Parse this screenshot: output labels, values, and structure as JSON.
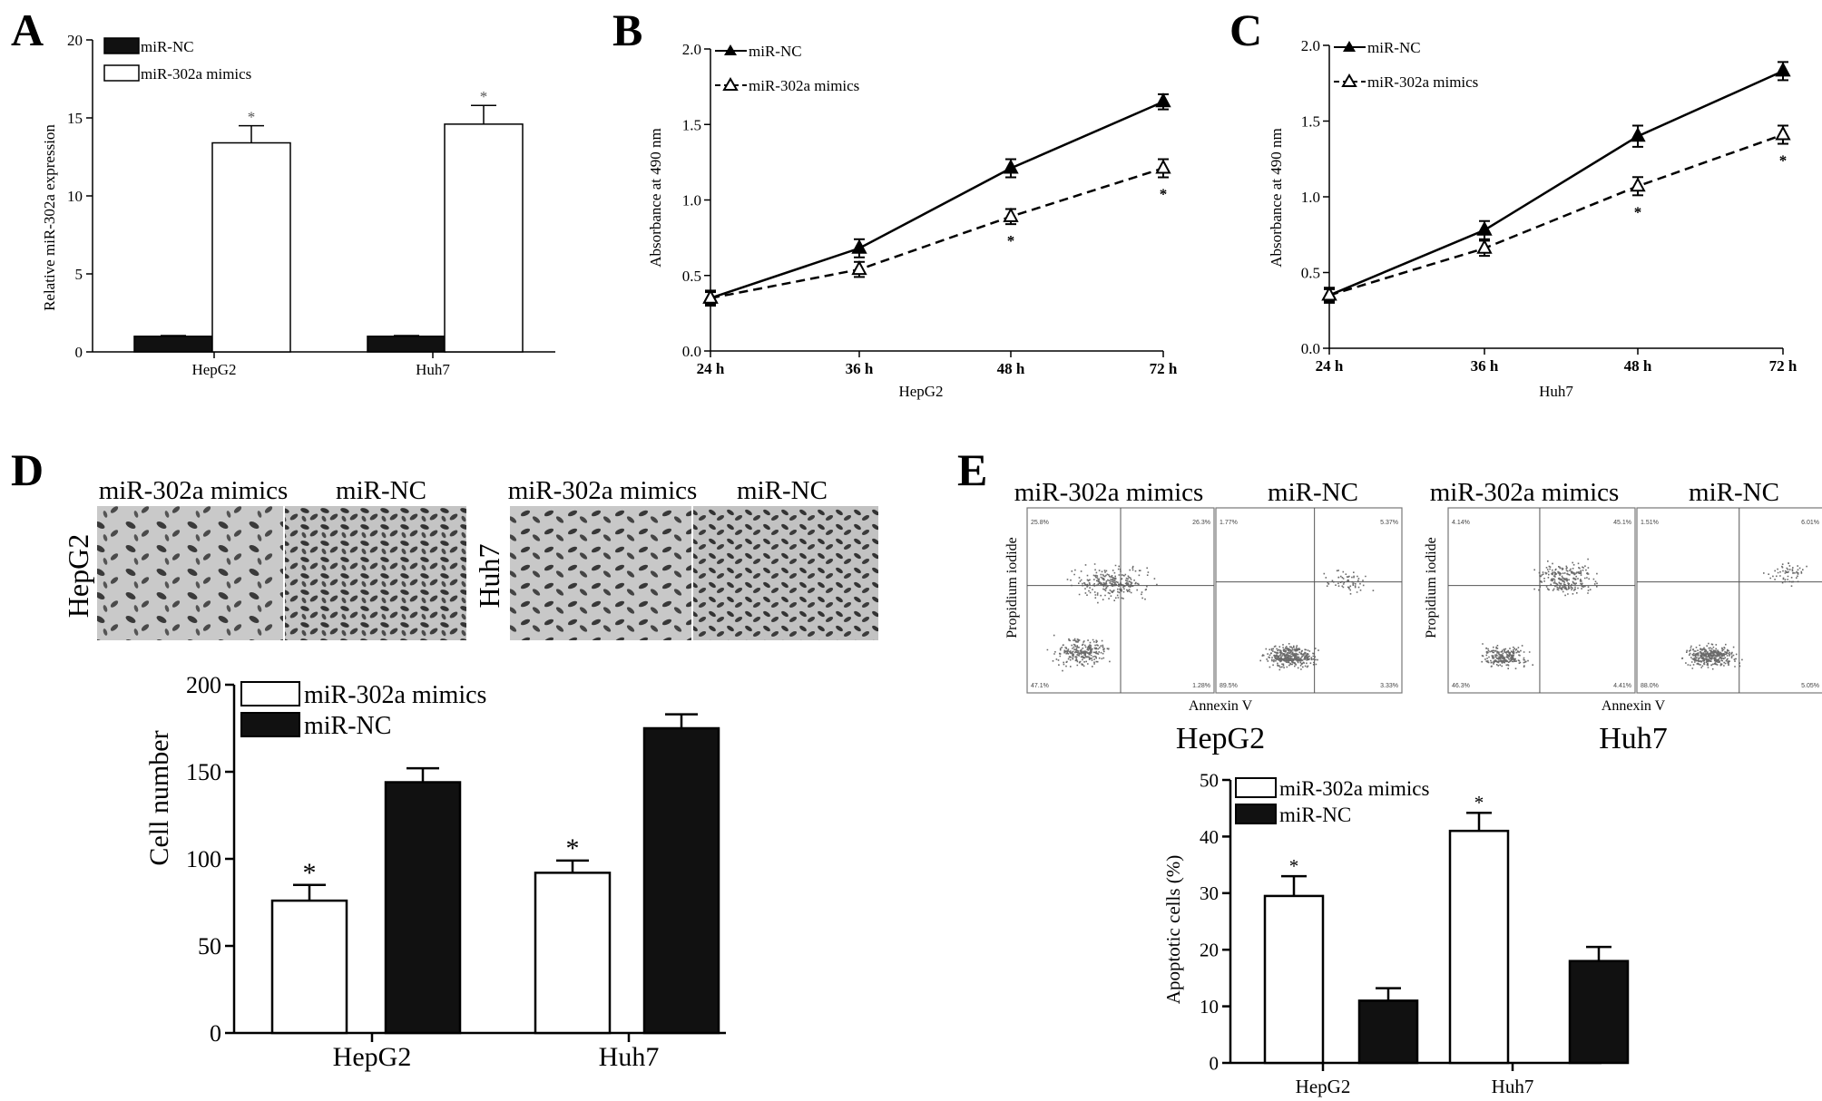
{
  "panels": {
    "A": {
      "letter": "A",
      "chart_data": {
        "type": "bar",
        "categories": [
          "HepG2",
          "Huh7"
        ],
        "series": [
          {
            "name": "miR-NC",
            "values": [
              1.0,
              1.0
            ],
            "errors": [
              0.05,
              0.05
            ],
            "color": "#111111"
          },
          {
            "name": "miR-302a mimics",
            "values": [
              13.4,
              14.6
            ],
            "errors": [
              1.1,
              1.2
            ],
            "color": "#ffffff"
          }
        ],
        "ylabel": "Relative miR-302a expression",
        "ylim": [
          0,
          20
        ],
        "yticks": [
          0,
          5,
          10,
          15,
          20
        ],
        "significance": [
          {
            "category": "HepG2",
            "series": "miR-302a mimics",
            "mark": "*"
          },
          {
            "category": "Huh7",
            "series": "miR-302a mimics",
            "mark": "*"
          }
        ]
      }
    },
    "B": {
      "letter": "B",
      "chart_data": {
        "type": "line",
        "x": [
          "24 h",
          "36 h",
          "48 h",
          "72 h"
        ],
        "series": [
          {
            "name": "miR-NC",
            "values": [
              0.35,
              0.68,
              1.21,
              1.65
            ],
            "errors": [
              0.05,
              0.06,
              0.06,
              0.05
            ],
            "marker": "filled-triangle",
            "dash": "solid"
          },
          {
            "name": "miR-302a mimics",
            "values": [
              0.35,
              0.54,
              0.89,
              1.21
            ],
            "errors": [
              0.04,
              0.05,
              0.05,
              0.06
            ],
            "marker": "open-triangle",
            "dash": "dashed"
          }
        ],
        "xlabel": "HepG2",
        "ylabel": "Absorbance at 490 nm",
        "ylim": [
          0,
          2.0
        ],
        "yticks": [
          "0.0",
          "0.5",
          "1.0",
          "1.5",
          "2.0"
        ],
        "significance": [
          {
            "x": "48 h",
            "mark": "*"
          },
          {
            "x": "72 h",
            "mark": "*"
          }
        ]
      }
    },
    "C": {
      "letter": "C",
      "chart_data": {
        "type": "line",
        "x": [
          "24 h",
          "36 h",
          "48 h",
          "72 h"
        ],
        "series": [
          {
            "name": "miR-NC",
            "values": [
              0.35,
              0.78,
              1.4,
              1.83
            ],
            "errors": [
              0.05,
              0.06,
              0.07,
              0.06
            ],
            "marker": "filled-triangle",
            "dash": "solid"
          },
          {
            "name": "miR-302a mimics",
            "values": [
              0.35,
              0.66,
              1.07,
              1.41
            ],
            "errors": [
              0.04,
              0.05,
              0.06,
              0.06
            ],
            "marker": "open-triangle",
            "dash": "dashed"
          }
        ],
        "xlabel": "Huh7",
        "ylabel": "Absorbance at 490 nm",
        "ylim": [
          0,
          2.0
        ],
        "yticks": [
          "0.0",
          "0.5",
          "1.0",
          "1.5",
          "2.0"
        ],
        "significance": [
          {
            "x": "48 h",
            "mark": "*"
          },
          {
            "x": "72 h",
            "mark": "*"
          }
        ]
      }
    },
    "D": {
      "letter": "D",
      "images": {
        "left_headers": [
          "miR-302a mimics",
          "miR-NC"
        ],
        "right_headers": [
          "miR-302a mimics",
          "miR-NC"
        ],
        "left_cell": "HepG2",
        "right_cell": "Huh7"
      },
      "chart_data": {
        "type": "bar",
        "categories": [
          "HepG2",
          "Huh7"
        ],
        "series": [
          {
            "name": "miR-302a mimics",
            "values": [
              76,
              92
            ],
            "errors": [
              9,
              7
            ],
            "color": "#ffffff"
          },
          {
            "name": "miR-NC",
            "values": [
              144,
              175
            ],
            "errors": [
              8,
              8
            ],
            "color": "#111111"
          }
        ],
        "ylabel": "Cell number",
        "ylim": [
          0,
          200
        ],
        "yticks": [
          0,
          50,
          100,
          150,
          200
        ],
        "significance": [
          {
            "category": "HepG2",
            "series": "miR-302a mimics",
            "mark": "*"
          },
          {
            "category": "Huh7",
            "series": "miR-302a mimics",
            "mark": "*"
          }
        ]
      }
    },
    "E": {
      "letter": "E",
      "flow": {
        "left_headers": [
          "miR-302a mimics",
          "miR-NC"
        ],
        "right_headers": [
          "miR-302a mimics",
          "miR-NC"
        ],
        "ylabel": "Propidium iodide",
        "xlabel": "Annexin V",
        "left_cell": "HepG2",
        "right_cell": "Huh7",
        "quadrants": [
          {
            "q1": "25.8%",
            "q2": "26.3%",
            "q3": "1.28%",
            "q4": "47.1%"
          },
          {
            "q1": "1.77%",
            "q2": "5.37%",
            "q3": "3.33%",
            "q4": "89.5%"
          },
          {
            "q1": "4.14%",
            "q2": "45.1%",
            "q3": "4.41%",
            "q4": "46.3%"
          },
          {
            "q1": "1.51%",
            "q2": "6.01%",
            "q3": "5.05%",
            "q4": "88.0%"
          }
        ]
      },
      "chart_data": {
        "type": "bar",
        "categories": [
          "HepG2",
          "Huh7"
        ],
        "series": [
          {
            "name": "miR-302a mimics",
            "values": [
              29.5,
              41.0
            ],
            "errors": [
              3.5,
              3.2
            ],
            "color": "#ffffff"
          },
          {
            "name": "miR-NC",
            "values": [
              11.0,
              18.0
            ],
            "errors": [
              2.2,
              2.5
            ],
            "color": "#111111"
          }
        ],
        "ylabel": "Apoptotic cells (%)",
        "ylim": [
          0,
          50
        ],
        "yticks": [
          0,
          10,
          20,
          30,
          40,
          50
        ],
        "significance": [
          {
            "category": "HepG2",
            "series": "miR-302a mimics",
            "mark": "*"
          },
          {
            "category": "Huh7",
            "series": "miR-302a mimics",
            "mark": "*"
          }
        ]
      }
    }
  }
}
